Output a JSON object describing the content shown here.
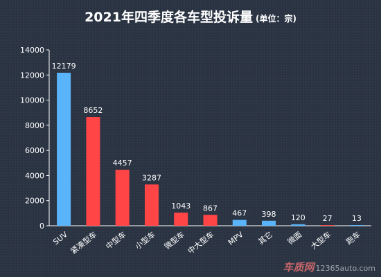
{
  "header": {
    "title": "2021年四季度各车型投诉量",
    "unit": "(单位：宗)"
  },
  "watermark": {
    "brand": "车质网",
    "site": "12365auto.com"
  },
  "colors": {
    "blue": "#5ab4fb",
    "red": "#ff4545",
    "axis": "#ffffff",
    "text": "#ffffff"
  },
  "chart_data": {
    "type": "bar",
    "title": "2021年四季度各车型投诉量",
    "subtitle": "(单位：宗)",
    "xlabel": "",
    "ylabel": "",
    "ylim": [
      0,
      14000
    ],
    "yticks": [
      0,
      2000,
      4000,
      6000,
      8000,
      10000,
      12000,
      14000
    ],
    "grid": false,
    "categories": [
      "SUV",
      "紧凑型车",
      "中型车",
      "小型车",
      "微型车",
      "中大型车",
      "MPV",
      "其它",
      "微面",
      "大型车",
      "跑车"
    ],
    "values": [
      12179,
      8652,
      4457,
      3287,
      1043,
      867,
      467,
      398,
      120,
      27,
      13
    ],
    "bar_colors": [
      "#5ab4fb",
      "#ff4545",
      "#ff4545",
      "#ff4545",
      "#ff4545",
      "#ff4545",
      "#5ab4fb",
      "#5ab4fb",
      "#5ab4fb",
      "#ff4545",
      "#5ab4fb"
    ]
  }
}
